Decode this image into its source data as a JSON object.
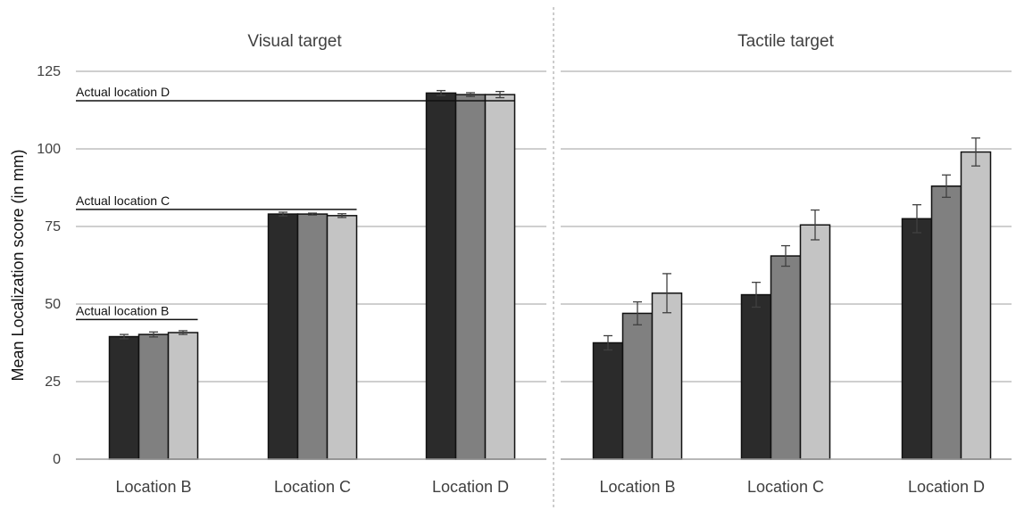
{
  "chart_data": {
    "type": "bar",
    "ylabel": "Mean Localization score (in mm)",
    "ylim": [
      0,
      125
    ],
    "yticks": [
      0,
      25,
      50,
      75,
      100,
      125
    ],
    "grid": true,
    "series_colors": [
      "#2b2b2b",
      "#808080",
      "#c4c4c4"
    ],
    "panels": [
      {
        "title": "Visual target",
        "categories": [
          "Location B",
          "Location C",
          "Location D"
        ],
        "series": [
          {
            "values": [
              39.5,
              79,
              118
            ],
            "errors": [
              0.7,
              0.6,
              0.8
            ]
          },
          {
            "values": [
              40.2,
              79,
              117.5
            ],
            "errors": [
              0.8,
              0.3,
              0.6
            ]
          },
          {
            "values": [
              40.8,
              78.5,
              117.5
            ],
            "errors": [
              0.6,
              0.6,
              1.0
            ]
          }
        ],
        "reference_lines": [
          {
            "label": "Actual location B",
            "value": 45,
            "span_to_category": 0
          },
          {
            "label": "Actual location C",
            "value": 80.5,
            "span_to_category": 1
          },
          {
            "label": "Actual location D",
            "value": 115.5,
            "span_to_category": 2
          }
        ]
      },
      {
        "title": "Tactile target",
        "categories": [
          "Location B",
          "Location C",
          "Location D"
        ],
        "series": [
          {
            "values": [
              37.5,
              53,
              77.5
            ],
            "errors": [
              2.3,
              4.0,
              4.5
            ]
          },
          {
            "values": [
              47,
              65.5,
              88
            ],
            "errors": [
              3.7,
              3.3,
              3.6
            ]
          },
          {
            "values": [
              53.5,
              75.5,
              99
            ],
            "errors": [
              6.3,
              4.8,
              4.5
            ]
          }
        ],
        "reference_lines": []
      }
    ]
  }
}
